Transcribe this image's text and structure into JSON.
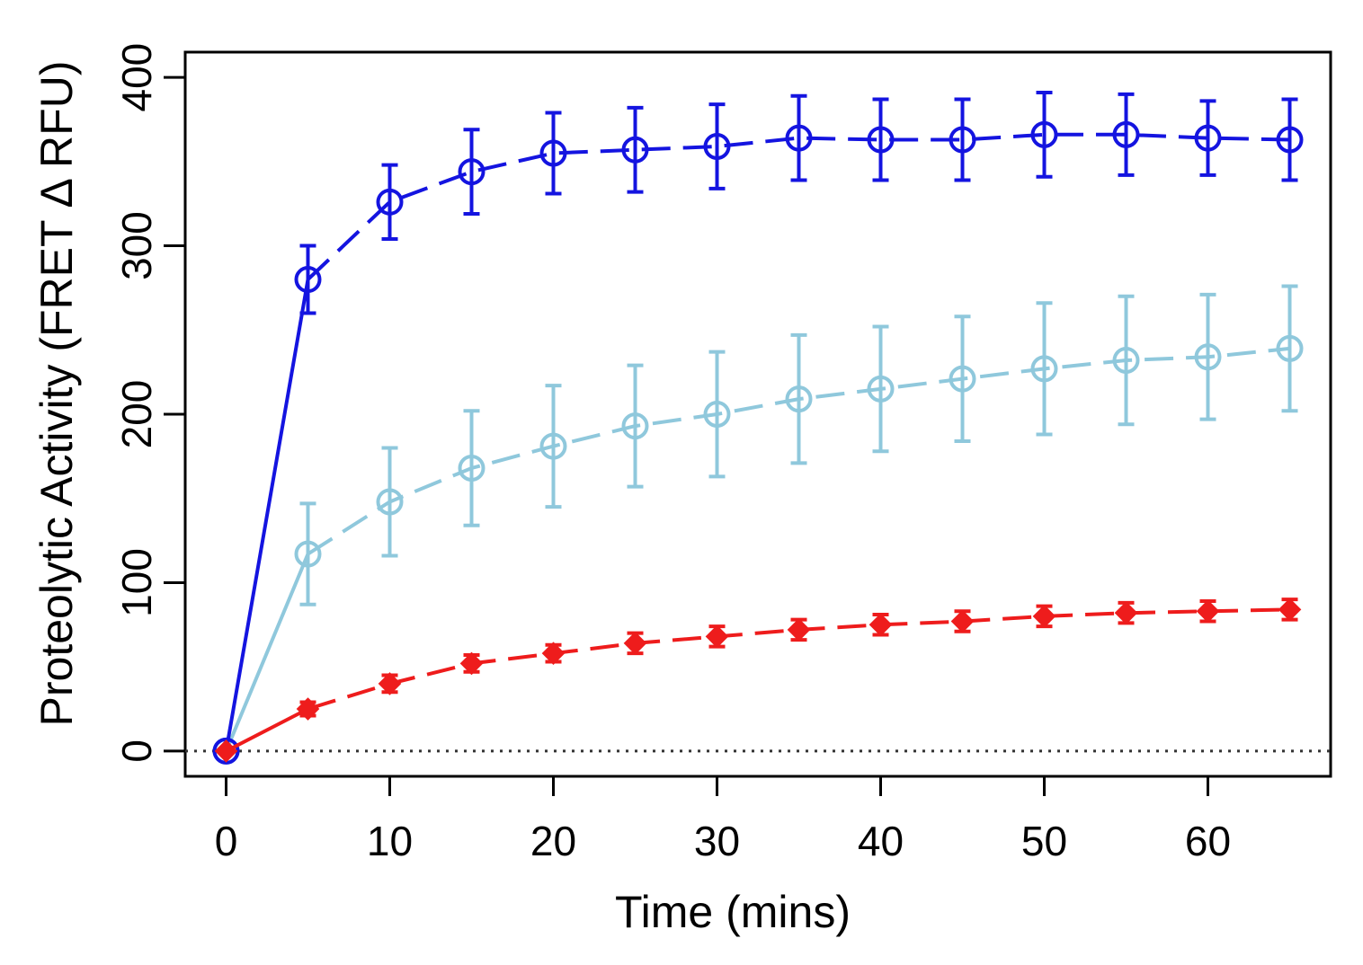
{
  "chart_data": {
    "type": "line",
    "title": "",
    "xlabel": "Time (mins)",
    "ylabel": "Proteolytic Activity (FRET Δ RFU)",
    "xlim": [
      -2.5,
      67.5
    ],
    "ylim": [
      -15,
      415
    ],
    "x_ticks": [
      0,
      10,
      20,
      30,
      40,
      50,
      60
    ],
    "y_ticks": [
      0,
      100,
      200,
      300,
      400
    ],
    "grid": false,
    "legend": "none",
    "reference_line": {
      "y": 0,
      "style": "dotted",
      "color": "#333333"
    },
    "x": [
      0,
      5,
      10,
      15,
      20,
      25,
      30,
      35,
      40,
      45,
      50,
      55,
      60,
      65
    ],
    "series": [
      {
        "color": "#1414e0",
        "marker": "open-circle",
        "values": [
          0,
          280,
          326,
          344,
          355,
          357,
          359,
          364,
          363,
          363,
          366,
          366,
          364,
          363
        ],
        "error": [
          0,
          20,
          22,
          25,
          24,
          25,
          25,
          25,
          24,
          24,
          25,
          24,
          22,
          24
        ]
      },
      {
        "color": "#8fc8dc",
        "marker": "open-circle",
        "values": [
          0,
          117,
          148,
          168,
          181,
          193,
          200,
          209,
          215,
          221,
          227,
          232,
          234,
          239
        ],
        "error": [
          0,
          30,
          32,
          34,
          36,
          36,
          37,
          38,
          37,
          37,
          39,
          38,
          37,
          37
        ]
      },
      {
        "color": "#ee1c1c",
        "marker": "filled-diamond",
        "values": [
          0,
          25,
          40,
          52,
          58,
          64,
          68,
          72,
          75,
          77,
          80,
          82,
          83,
          84
        ],
        "error": [
          0,
          4,
          5,
          5,
          5,
          6,
          6,
          6,
          6,
          6,
          6,
          6,
          6,
          6
        ]
      }
    ]
  }
}
